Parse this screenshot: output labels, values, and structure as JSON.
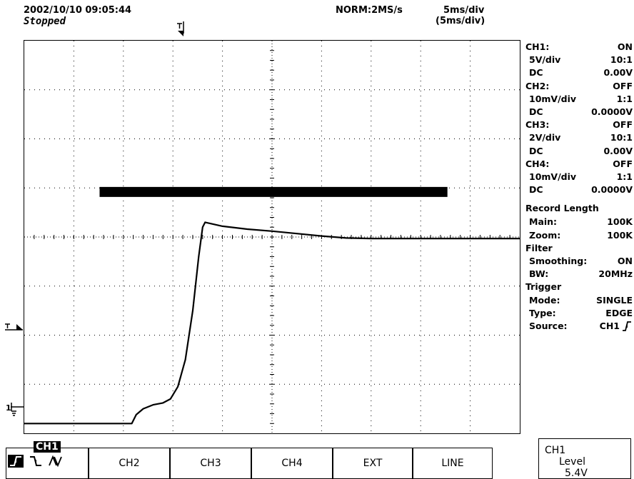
{
  "header": {
    "datetime": "2002/10/10  09:05:44",
    "status": "Stopped",
    "trigger_position_marker": "T",
    "acq_mode": "NORM:2MS/s",
    "timebase": "5ms/div",
    "timebase_zoom": "(5ms/div)"
  },
  "screen": {
    "ground_marker": "1",
    "trigger_level_marker": "T",
    "waveform": {
      "channel": "CH1",
      "x_unit": "div",
      "y_unit": "div from center",
      "points": [
        [
          0.0,
          -3.8
        ],
        [
          2.17,
          -3.8
        ],
        [
          2.26,
          -3.62
        ],
        [
          2.4,
          -3.5
        ],
        [
          2.6,
          -3.42
        ],
        [
          2.8,
          -3.38
        ],
        [
          2.95,
          -3.3
        ],
        [
          3.1,
          -3.05
        ],
        [
          3.25,
          -2.5
        ],
        [
          3.4,
          -1.5
        ],
        [
          3.52,
          -0.4
        ],
        [
          3.6,
          0.2
        ],
        [
          3.65,
          0.3
        ],
        [
          4.0,
          0.22
        ],
        [
          4.5,
          0.16
        ],
        [
          5.0,
          0.12
        ],
        [
          5.5,
          0.07
        ],
        [
          6.0,
          0.02
        ],
        [
          6.5,
          -0.02
        ],
        [
          7.0,
          -0.03
        ],
        [
          8.0,
          -0.03
        ],
        [
          10.0,
          -0.03
        ]
      ],
      "channel_color": "#000000"
    }
  },
  "channels": [
    {
      "name": "CH1:",
      "state": "ON",
      "vdiv": "5V/div",
      "probe": "10:1",
      "coupling": "DC",
      "offset": "0.00V"
    },
    {
      "name": "CH2:",
      "state": "OFF",
      "vdiv": "10mV/div",
      "probe": "1:1",
      "coupling": "DC",
      "offset": "0.0000V"
    },
    {
      "name": "CH3:",
      "state": "OFF",
      "vdiv": "2V/div",
      "probe": "10:1",
      "coupling": "DC",
      "offset": "0.00V"
    },
    {
      "name": "CH4:",
      "state": "OFF",
      "vdiv": "10mV/div",
      "probe": "1:1",
      "coupling": "DC",
      "offset": "0.0000V"
    }
  ],
  "record": {
    "title": "Record Length",
    "main_label": "Main:",
    "main_value": "100K",
    "zoom_label": "Zoom:",
    "zoom_value": "100K"
  },
  "filter": {
    "title": "Filter",
    "smooth_label": "Smoothing:",
    "smooth_value": "ON",
    "bw_label": "BW:",
    "bw_value": "20MHz"
  },
  "trigger": {
    "title": "Trigger",
    "mode_label": "Mode:",
    "mode_value": "SINGLE",
    "type_label": "Type:",
    "type_value": "EDGE",
    "source_label": "Source:",
    "source_value": "CH1",
    "slope_icon": "rising-edge-icon"
  },
  "softkeys": {
    "selected": "CH1",
    "items": [
      "CH2",
      "CH3",
      "CH4",
      "EXT",
      "LINE"
    ],
    "slope_icons": [
      "rising-edge-icon",
      "falling-edge-icon",
      "both-edges-icon"
    ]
  },
  "level": {
    "title": "CH1",
    "label": "Level",
    "value": "5.4V"
  }
}
